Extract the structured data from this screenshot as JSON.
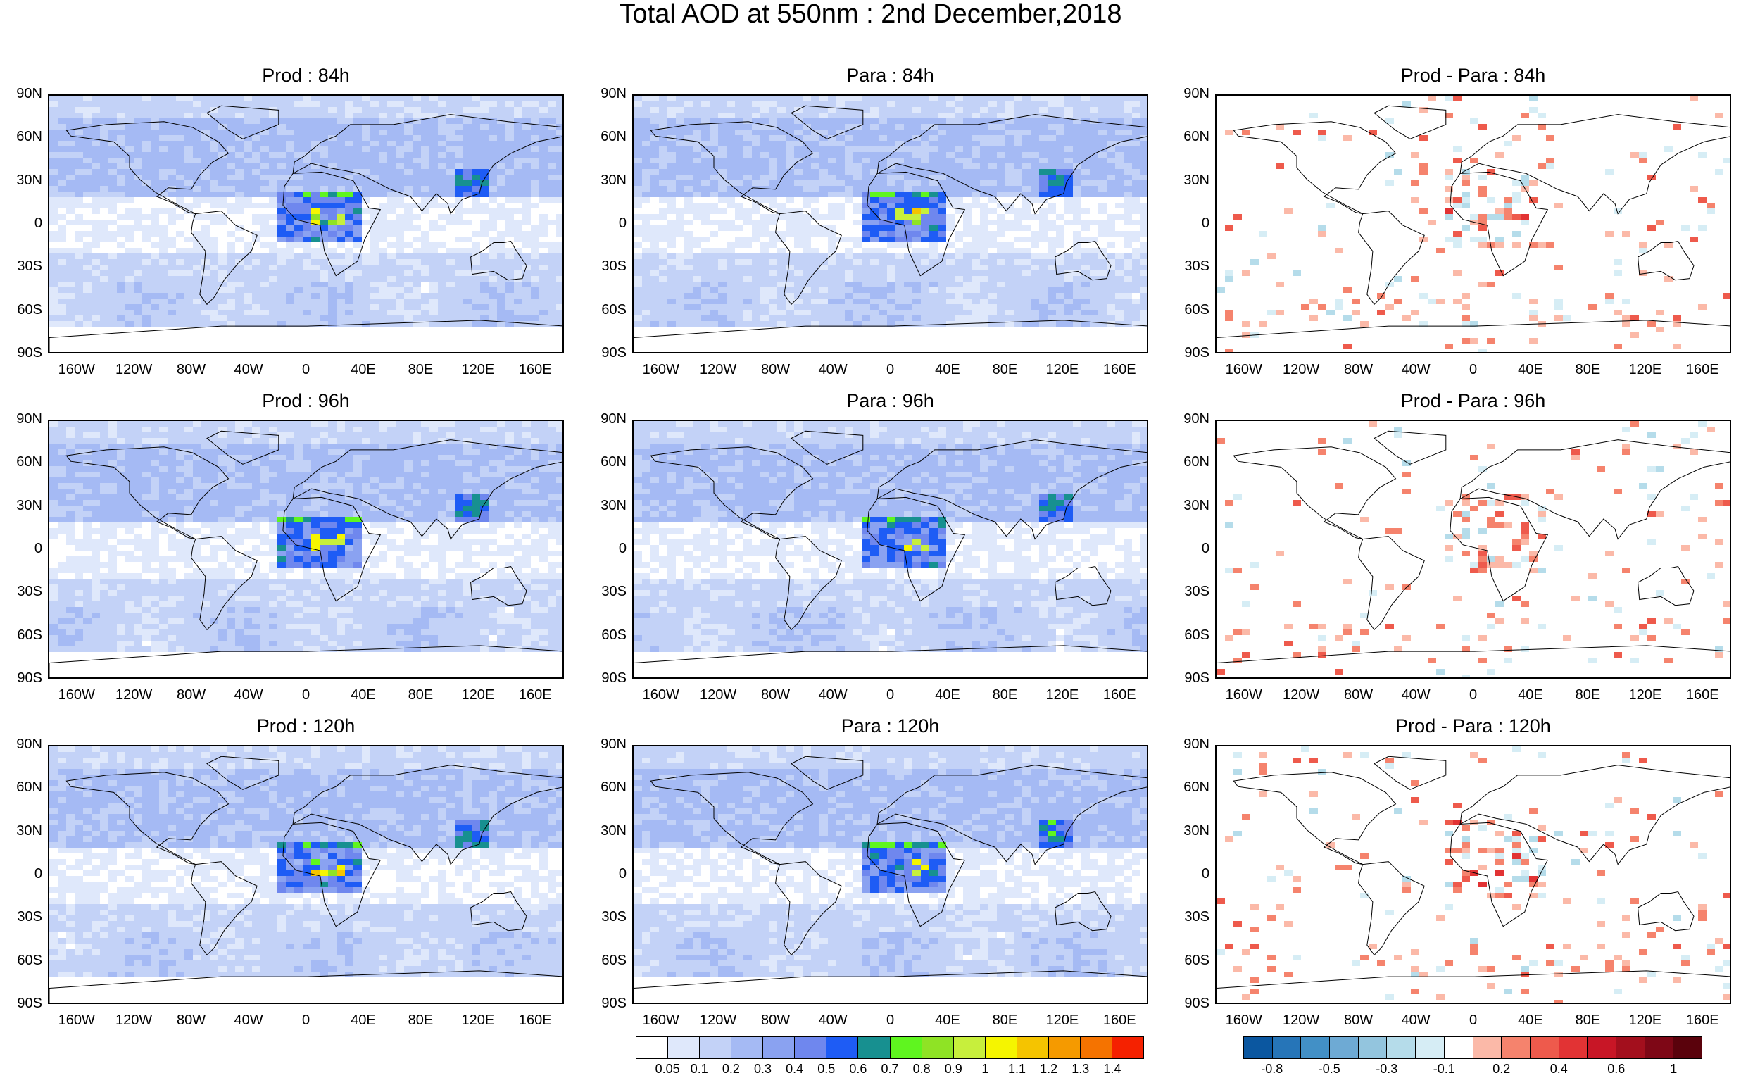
{
  "title": "Total AOD at 550nm : 2nd December,2018",
  "panels": [
    {
      "title": "Prod : 84h",
      "kind": "aod",
      "seed": 1
    },
    {
      "title": "Para : 84h",
      "kind": "aod",
      "seed": 2
    },
    {
      "title": "Prod - Para : 84h",
      "kind": "diff",
      "seed": 3
    },
    {
      "title": "Prod : 96h",
      "kind": "aod",
      "seed": 4
    },
    {
      "title": "Para : 96h",
      "kind": "aod",
      "seed": 5
    },
    {
      "title": "Prod - Para : 96h",
      "kind": "diff",
      "seed": 6
    },
    {
      "title": "Prod : 120h",
      "kind": "aod",
      "seed": 7
    },
    {
      "title": "Para : 120h",
      "kind": "aod",
      "seed": 8
    },
    {
      "title": "Prod - Para : 120h",
      "kind": "diff",
      "seed": 9
    }
  ],
  "lat_labels": [
    "90N",
    "60N",
    "30N",
    "0",
    "30S",
    "60S",
    "90S"
  ],
  "lon_labels": [
    "160W",
    "120W",
    "80W",
    "40W",
    "0",
    "40E",
    "80E",
    "120E",
    "160E"
  ],
  "aod_colorbar": {
    "colors": [
      "#ffffff",
      "#dfe8fb",
      "#c3d2f7",
      "#a5baf4",
      "#8aa2f1",
      "#6f87ee",
      "#1e5cf5",
      "#179090",
      "#5ff51f",
      "#8fe325",
      "#c7ef3c",
      "#f5f500",
      "#f5c400",
      "#f59a00",
      "#f57300",
      "#f52100"
    ],
    "labels": [
      "0.05",
      "0.1",
      "0.2",
      "0.3",
      "0.4",
      "0.5",
      "0.6",
      "0.7",
      "0.8",
      "0.9",
      "1",
      "1.1",
      "1.2",
      "1.3",
      "1.4"
    ]
  },
  "diff_colorbar": {
    "colors": [
      "#0b57a0",
      "#2675b8",
      "#4290c6",
      "#6eaad4",
      "#93c5de",
      "#b5dcea",
      "#d6edf5",
      "#ffffff",
      "#fbb9a8",
      "#f5836d",
      "#ee5a4c",
      "#e23334",
      "#c81626",
      "#a30f1d",
      "#7e0716",
      "#5a020c"
    ],
    "labels": [
      "-0.8",
      "-0.5",
      "-0.3",
      "-0.1",
      "0.2",
      "0.4",
      "0.6",
      "1"
    ]
  }
}
